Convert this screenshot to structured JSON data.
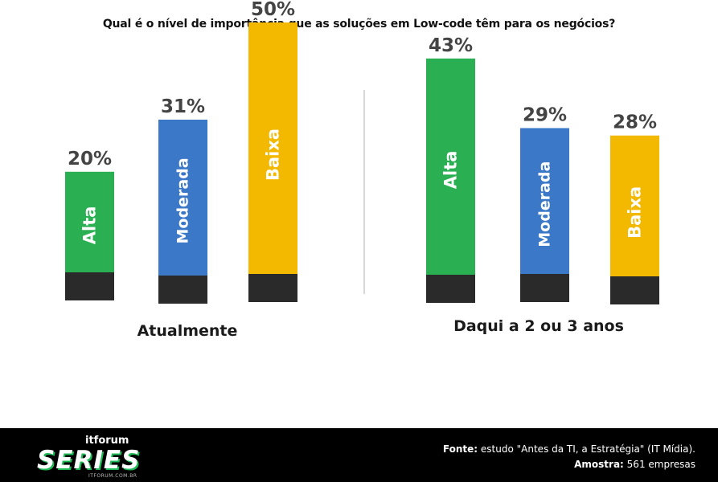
{
  "chart_data": {
    "type": "bar",
    "title": "Qual é o nível de importância que as soluções em Low-code têm para os negócios?",
    "groups": [
      {
        "label": "Atualmente",
        "bars": [
          {
            "category": "Alta",
            "value": 20,
            "label": "20%",
            "color": "#2ab052"
          },
          {
            "category": "Moderada",
            "value": 31,
            "label": "31%",
            "color": "#3c78c8"
          },
          {
            "category": "Baixa",
            "value": 50,
            "label": "50%",
            "color": "#f3b800"
          }
        ]
      },
      {
        "label": "Daqui a 2 ou 3 anos",
        "bars": [
          {
            "category": "Alta",
            "value": 43,
            "label": "43%",
            "color": "#2ab052"
          },
          {
            "category": "Moderada",
            "value": 29,
            "label": "29%",
            "color": "#3c78c8"
          },
          {
            "category": "Baixa",
            "value": 28,
            "label": "28%",
            "color": "#f3b800"
          }
        ]
      }
    ],
    "base_color": "#2a2a2a"
  },
  "footer": {
    "logo_top_it": "it",
    "logo_top_forum": "forum",
    "logo_main": "SERIES",
    "logo_sub": "ITFORUM.COM.BR",
    "source_label": "Fonte:",
    "source_text": "estudo \"Antes da TI, a Estratégia\" (IT Mídia).",
    "sample_label": "Amostra:",
    "sample_text": "561 empresas"
  }
}
